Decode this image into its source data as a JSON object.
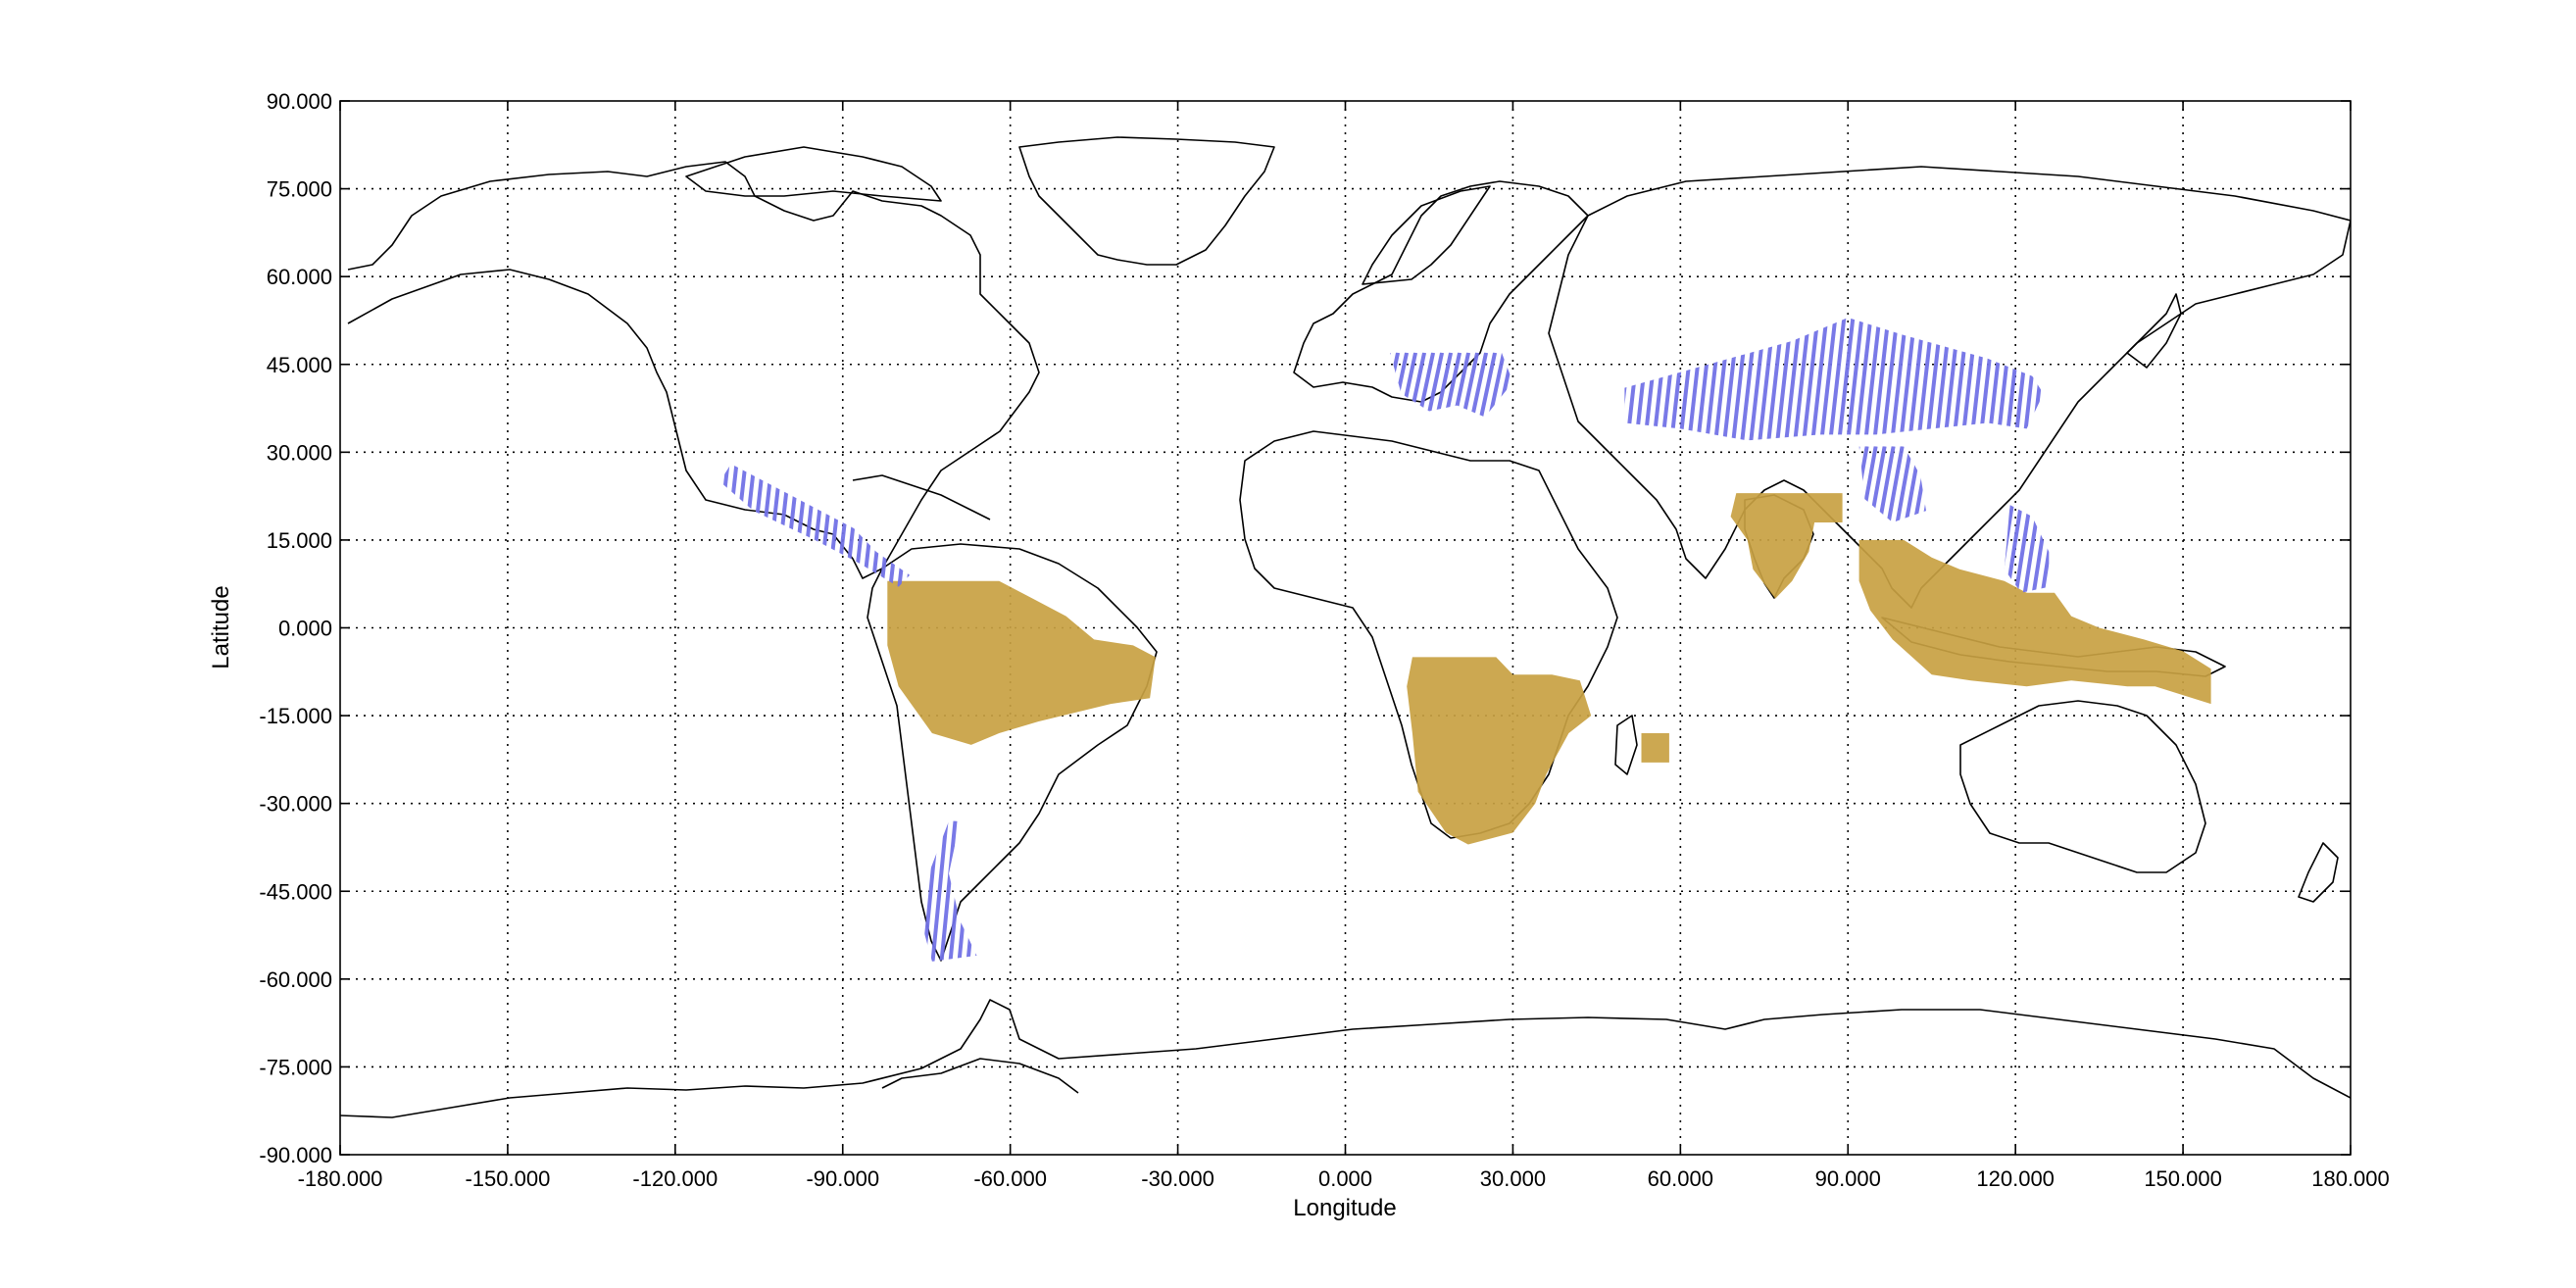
{
  "chart_data": {
    "type": "map",
    "title": "",
    "xlabel": "Longitude",
    "ylabel": "Latitude",
    "xlim": [
      -180,
      180
    ],
    "ylim": [
      -90,
      90
    ],
    "xticks": [
      -180,
      -150,
      -120,
      -90,
      -60,
      -30,
      0,
      30,
      60,
      90,
      120,
      150,
      180
    ],
    "yticks": [
      90,
      75,
      60,
      45,
      30,
      15,
      0,
      -15,
      -30,
      -45,
      -60,
      -75,
      -90
    ],
    "xtick_labels": [
      "-180.000",
      "-150.000",
      "-120.000",
      "-90.000",
      "-60.000",
      "-30.000",
      "0.000",
      "30.000",
      "60.000",
      "90.000",
      "120.000",
      "150.000",
      "180.000"
    ],
    "ytick_labels": [
      "90.000",
      "75.000",
      "60.000",
      "45.000",
      "30.000",
      "15.000",
      "0.000",
      "-15.000",
      "-30.000",
      "-45.000",
      "-60.000",
      "-75.000",
      "-90.000"
    ],
    "grid": true,
    "colors": {
      "filled_regions": "#c8a142",
      "hatched_regions": "#7272e6",
      "coastline": "#000000"
    },
    "filled_regions": [
      {
        "region": "south-america-amazon",
        "polygon": [
          [
            -82,
            8
          ],
          [
            -62,
            8
          ],
          [
            -56,
            5
          ],
          [
            -50,
            2
          ],
          [
            -45,
            -2
          ],
          [
            -38,
            -3
          ],
          [
            -34,
            -5
          ],
          [
            -35,
            -12
          ],
          [
            -42,
            -13
          ],
          [
            -55,
            -16
          ],
          [
            -62,
            -18
          ],
          [
            -67,
            -20
          ],
          [
            -74,
            -18
          ],
          [
            -80,
            -10
          ],
          [
            -82,
            -3
          ]
        ]
      },
      {
        "region": "southern-africa",
        "polygon": [
          [
            12,
            -5
          ],
          [
            27,
            -5
          ],
          [
            30,
            -8
          ],
          [
            37,
            -8
          ],
          [
            42,
            -9
          ],
          [
            44,
            -15
          ],
          [
            40,
            -18
          ],
          [
            36,
            -25
          ],
          [
            34,
            -30
          ],
          [
            30,
            -35
          ],
          [
            22,
            -37
          ],
          [
            18,
            -35
          ],
          [
            13,
            -28
          ],
          [
            12,
            -18
          ],
          [
            11,
            -10
          ]
        ]
      },
      {
        "region": "madagascar-east",
        "polygon": [
          [
            53,
            -18
          ],
          [
            58,
            -18
          ],
          [
            58,
            -23
          ],
          [
            53,
            -23
          ]
        ]
      },
      {
        "region": "india",
        "polygon": [
          [
            70,
            23
          ],
          [
            89,
            23
          ],
          [
            89,
            18
          ],
          [
            84,
            18
          ],
          [
            83,
            13
          ],
          [
            80,
            8
          ],
          [
            77,
            5
          ],
          [
            73,
            10
          ],
          [
            72,
            15
          ],
          [
            69,
            19
          ]
        ]
      },
      {
        "region": "maritime-southeast-asia",
        "polygon": [
          [
            92,
            15
          ],
          [
            100,
            15
          ],
          [
            105,
            12
          ],
          [
            110,
            10
          ],
          [
            118,
            8
          ],
          [
            122,
            6
          ],
          [
            127,
            6
          ],
          [
            130,
            2
          ],
          [
            135,
            0
          ],
          [
            143,
            -2
          ],
          [
            150,
            -4
          ],
          [
            155,
            -7
          ],
          [
            155,
            -13
          ],
          [
            145,
            -10
          ],
          [
            140,
            -10
          ],
          [
            130,
            -9
          ],
          [
            122,
            -10
          ],
          [
            112,
            -9
          ],
          [
            105,
            -8
          ],
          [
            98,
            -2
          ],
          [
            94,
            3
          ],
          [
            92,
            8
          ]
        ]
      }
    ],
    "hatched_regions": [
      {
        "region": "central-america",
        "polygon": [
          [
            -110,
            28
          ],
          [
            -98,
            22
          ],
          [
            -88,
            17
          ],
          [
            -84,
            13
          ],
          [
            -78,
            9
          ],
          [
            -80,
            7
          ],
          [
            -87,
            11
          ],
          [
            -95,
            15
          ],
          [
            -106,
            20
          ],
          [
            -112,
            25
          ]
        ]
      },
      {
        "region": "southern-andes",
        "polygon": [
          [
            -71,
            -33
          ],
          [
            -69,
            -33
          ],
          [
            -71,
            -42
          ],
          [
            -69,
            -50
          ],
          [
            -66,
            -56
          ],
          [
            -74,
            -57
          ],
          [
            -76,
            -50
          ],
          [
            -75,
            -43
          ]
        ]
      },
      {
        "region": "mediterranean",
        "polygon": [
          [
            8,
            47
          ],
          [
            28,
            47
          ],
          [
            30,
            42
          ],
          [
            25,
            36
          ],
          [
            20,
            38
          ],
          [
            15,
            37
          ],
          [
            10,
            40
          ]
        ]
      },
      {
        "region": "central-asia",
        "polygon": [
          [
            50,
            41
          ],
          [
            65,
            45
          ],
          [
            80,
            49
          ],
          [
            90,
            53
          ],
          [
            100,
            50
          ],
          [
            115,
            46
          ],
          [
            123,
            43
          ],
          [
            125,
            40
          ],
          [
            122,
            34
          ],
          [
            115,
            35
          ],
          [
            105,
            34
          ],
          [
            95,
            33
          ],
          [
            85,
            33
          ],
          [
            72,
            32
          ],
          [
            60,
            34
          ],
          [
            50,
            35
          ]
        ]
      },
      {
        "region": "southeast-asia-mainland",
        "polygon": [
          [
            92,
            31
          ],
          [
            100,
            31
          ],
          [
            103,
            26
          ],
          [
            104,
            20
          ],
          [
            98,
            18
          ],
          [
            93,
            22
          ]
        ]
      },
      {
        "region": "philippines",
        "polygon": [
          [
            119,
            21
          ],
          [
            123,
            19
          ],
          [
            126,
            13
          ],
          [
            126,
            7
          ],
          [
            121,
            6
          ],
          [
            118,
            10
          ]
        ]
      }
    ]
  }
}
